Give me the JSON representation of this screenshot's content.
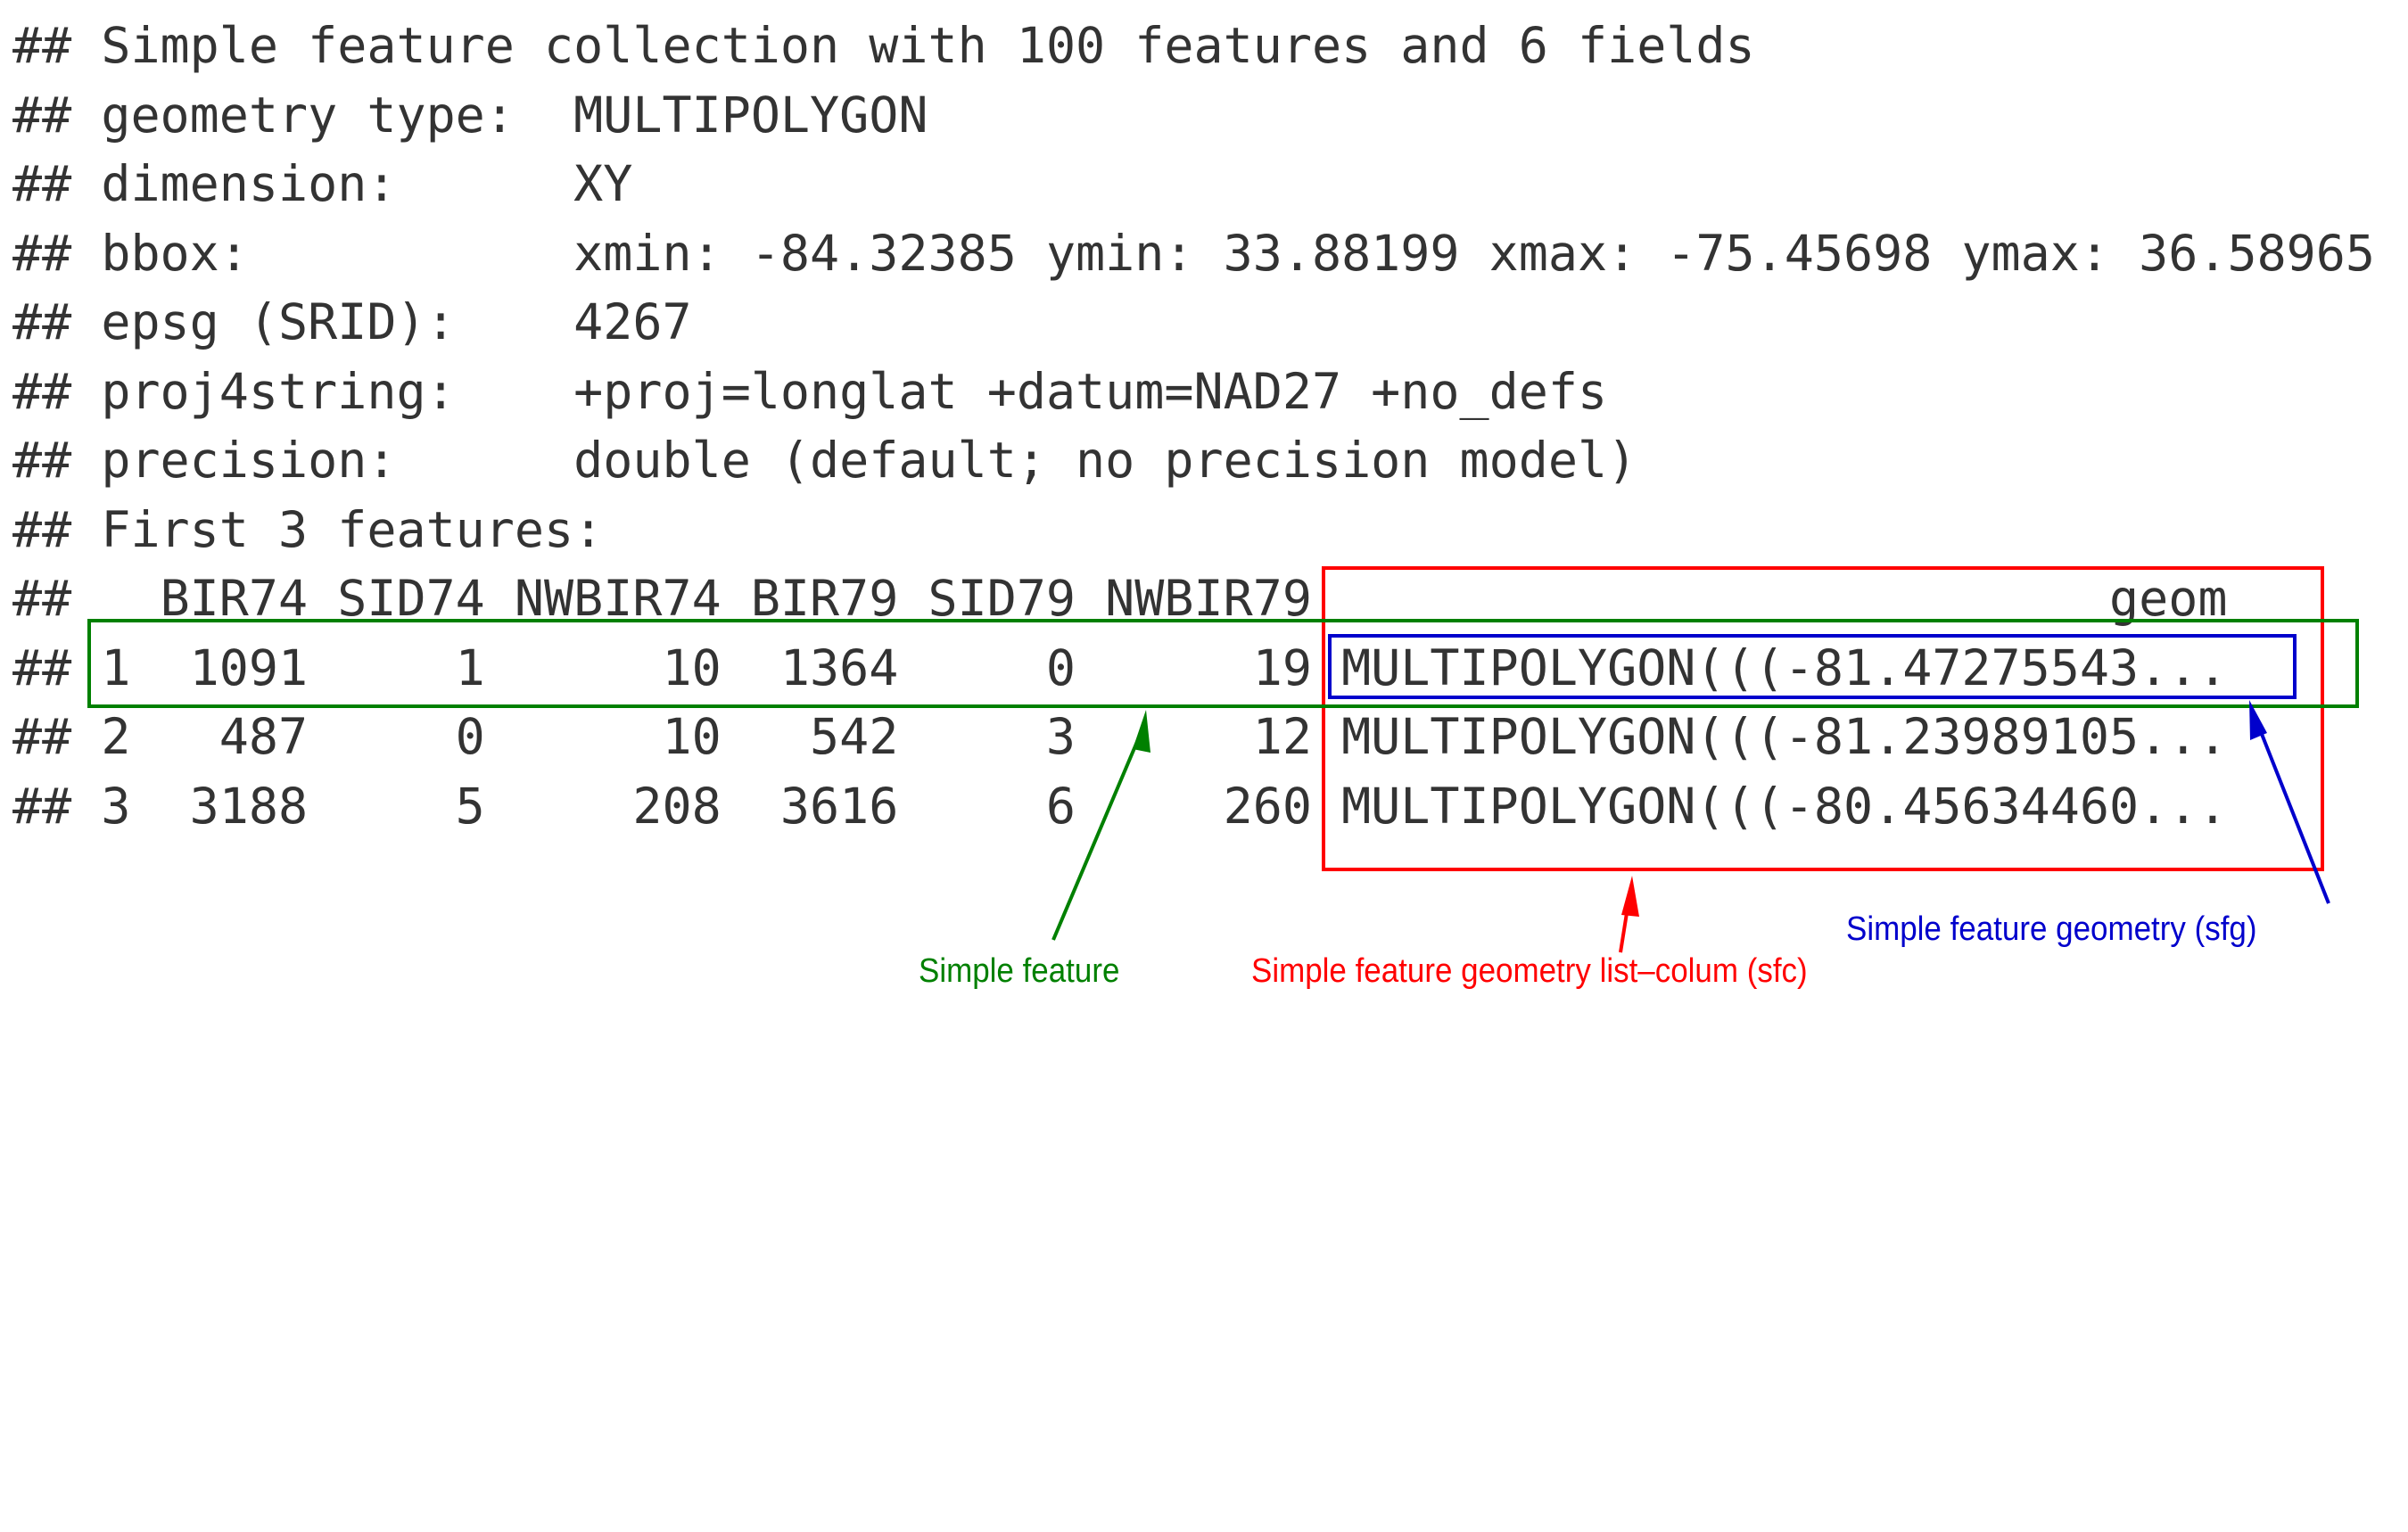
{
  "header_line": "Simple feature collection with 100 features and 6 fields",
  "prompt": "##",
  "metadata": [
    {
      "key": "geometry type:",
      "value": "MULTIPOLYGON"
    },
    {
      "key": "dimension:",
      "value": "XY"
    },
    {
      "key": "bbox:",
      "value": "xmin: -84.32385 ymin: 33.88199 xmax: -75.45698 ymax: 36.58965"
    },
    {
      "key": "epsg (SRID):",
      "value": "4267"
    },
    {
      "key": "proj4string:",
      "value": "+proj=longlat +datum=NAD27 +no_defs"
    },
    {
      "key": "precision:",
      "value": "double (default; no precision model)"
    }
  ],
  "features_heading": "First 3 features:",
  "table": {
    "columns": [
      "BIR74",
      "SID74",
      "NWBIR74",
      "BIR79",
      "SID79",
      "NWBIR79",
      "geom"
    ],
    "rows": [
      {
        "id": "1",
        "cells": [
          "1091",
          "1",
          "10",
          "1364",
          "0",
          "19",
          "MULTIPOLYGON(((-81.47275543..."
        ]
      },
      {
        "id": "2",
        "cells": [
          "487",
          "0",
          "10",
          "542",
          "3",
          "12",
          "MULTIPOLYGON(((-81.23989105..."
        ]
      },
      {
        "id": "3",
        "cells": [
          "3188",
          "5",
          "208",
          "3616",
          "6",
          "260",
          "MULTIPOLYGON(((-80.45634460..."
        ]
      }
    ]
  },
  "annotations": {
    "simple_feature": {
      "label": "Simple feature",
      "color": "#008000"
    },
    "sfc": {
      "label": "Simple feature geometry list–colum (sfc)",
      "color": "#ff0000"
    },
    "sfg": {
      "label": "Simple feature geometry (sfg)",
      "color": "#0000cc"
    }
  }
}
